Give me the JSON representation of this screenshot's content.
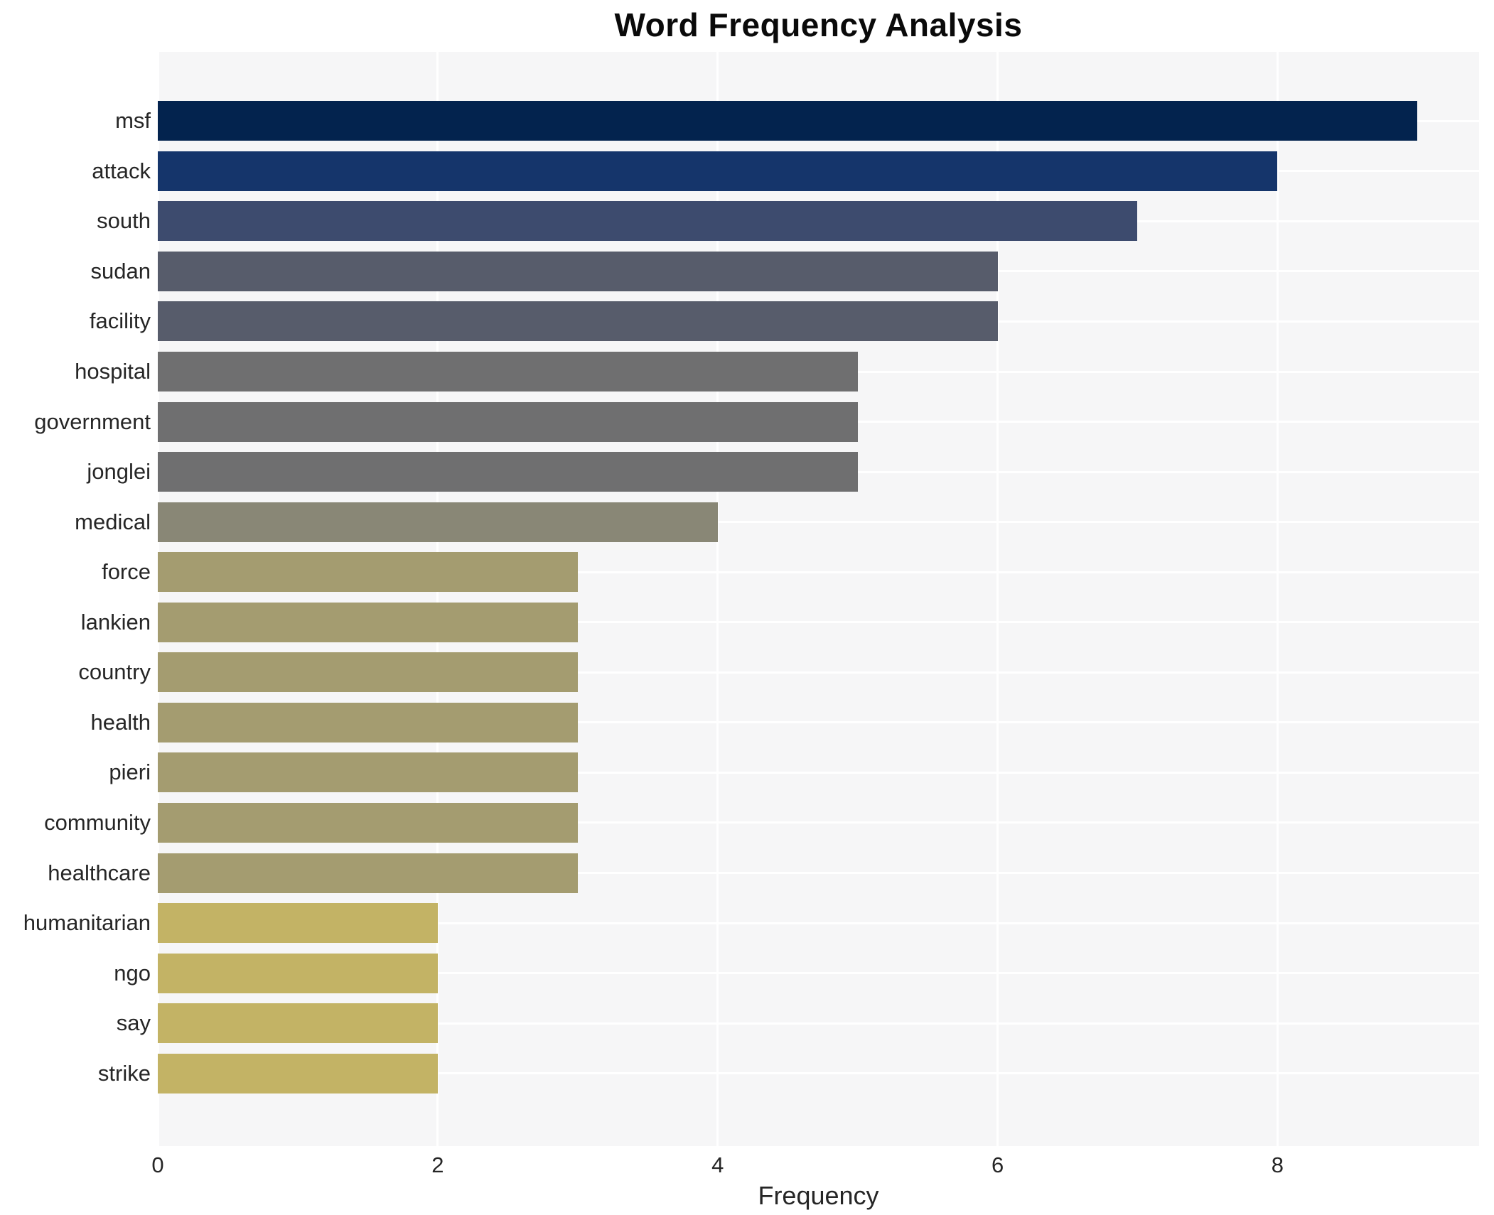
{
  "title": "Word Frequency Analysis",
  "xaxis": {
    "label": "Frequency"
  },
  "chart_data": {
    "type": "bar",
    "orientation": "horizontal",
    "title": "Word Frequency Analysis",
    "xlabel": "Frequency",
    "ylabel": "",
    "categories": [
      "msf",
      "attack",
      "south",
      "sudan",
      "facility",
      "hospital",
      "government",
      "jonglei",
      "medical",
      "force",
      "lankien",
      "country",
      "health",
      "pieri",
      "community",
      "healthcare",
      "humanitarian",
      "ngo",
      "say",
      "strike"
    ],
    "values": [
      9,
      8,
      7,
      6,
      6,
      5,
      5,
      5,
      4,
      3,
      3,
      3,
      3,
      3,
      3,
      3,
      2,
      2,
      2,
      2
    ],
    "bar_colors": [
      "#03234e",
      "#15356b",
      "#3d4b6e",
      "#575c6b",
      "#575c6b",
      "#6f6f70",
      "#6f6f70",
      "#6f6f70",
      "#898776",
      "#a49c70",
      "#a49c70",
      "#a49c70",
      "#a49c70",
      "#a49c70",
      "#a49c70",
      "#a49c70",
      "#c3b365",
      "#c3b365",
      "#c3b365",
      "#c3b365"
    ],
    "xticks": [
      0,
      2,
      4,
      6,
      8
    ],
    "xlim": [
      0,
      9.44
    ],
    "grid": "on",
    "grid_style": "white gridlines on light gray panel; vertical lines at x ticks, horizontal lines at bar centers",
    "legend_position": "none",
    "plot_background": "#f6f6f7",
    "grid_color": "#ffffff",
    "text_color": "#262626",
    "title_color": "#0a0a0a"
  }
}
